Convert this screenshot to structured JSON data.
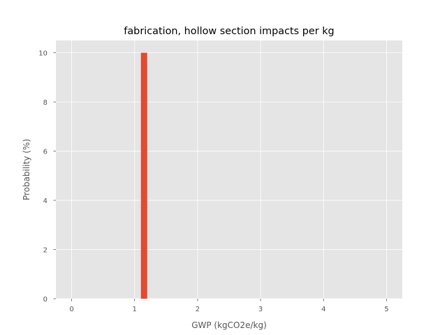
{
  "chart_data": {
    "type": "bar",
    "title": "fabrication, hollow section impacts per kg",
    "xlabel": "GWP (kgCO2e/kg)",
    "ylabel": "Probability (%)",
    "xlim": [
      -0.25,
      5.25
    ],
    "ylim": [
      0,
      10.5
    ],
    "xticks": [
      0,
      1,
      2,
      3,
      4,
      5
    ],
    "yticks": [
      0,
      2,
      4,
      6,
      8,
      10
    ],
    "grid": true,
    "bar_width": 0.1,
    "bars": [
      {
        "x": 1.15,
        "value": 10
      }
    ],
    "colors": {
      "bar": "#E24A33",
      "plot_background": "#E5E5E5",
      "grid": "#FFFFFF"
    }
  }
}
